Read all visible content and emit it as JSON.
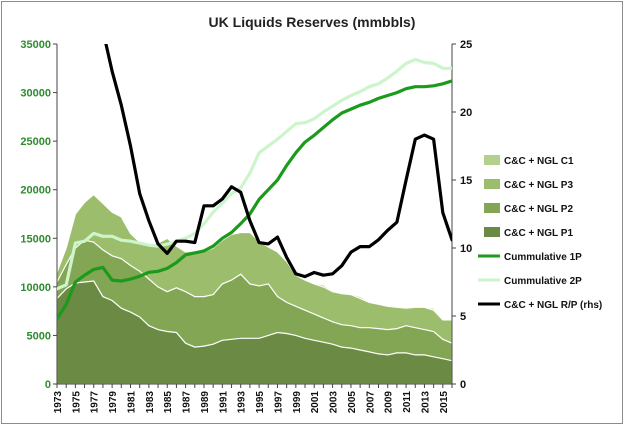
{
  "chart_data": {
    "type": "area",
    "title": "UK Liquids Reserves (mmbbls)",
    "x": [
      1973,
      1974,
      1975,
      1976,
      1977,
      1978,
      1979,
      1980,
      1981,
      1982,
      1983,
      1984,
      1985,
      1986,
      1987,
      1988,
      1989,
      1990,
      1991,
      1992,
      1993,
      1994,
      1995,
      1996,
      1997,
      1998,
      1999,
      2000,
      2001,
      2002,
      2003,
      2004,
      2005,
      2006,
      2007,
      2008,
      2009,
      2010,
      2011,
      2012,
      2013,
      2014,
      2015,
      2016
    ],
    "x_tick_labels": [
      "1973",
      "1975",
      "1977",
      "1979",
      "1981",
      "1983",
      "1985",
      "1987",
      "1989",
      "1991",
      "1993",
      "1995",
      "1997",
      "1999",
      "2001",
      "2003",
      "2005",
      "2007",
      "2009",
      "2011",
      "2013",
      "2015"
    ],
    "y_left": {
      "min": 0,
      "max": 35000,
      "ticks": [
        "0",
        "5000",
        "10000",
        "15000",
        "20000",
        "25000",
        "30000",
        "35000"
      ],
      "color": "#2e8b2e"
    },
    "y_right": {
      "min": 0,
      "max": 25,
      "ticks": [
        "0",
        "5",
        "10",
        "15",
        "20",
        "25"
      ],
      "color": "#111111"
    },
    "grid": false,
    "legend_position": "right",
    "series": [
      {
        "name": "C&C + NGL C1",
        "kind": "area",
        "axis": "left",
        "color": "#b5d08a",
        "values": [
          11500,
          14000,
          17000,
          18500,
          18800,
          18000,
          17000,
          17200,
          15500,
          14600,
          14300,
          14500,
          15000,
          14200,
          13600,
          13700,
          13600,
          14000,
          14800,
          15400,
          15500,
          15600,
          14600,
          14000,
          13500,
          12500,
          11000,
          10600,
          10400,
          10200,
          9600,
          9400,
          9300,
          9000,
          8500,
          8300,
          8100,
          8000,
          7900,
          8000,
          7900,
          7800,
          6600,
          6600
        ]
      },
      {
        "name": "C&C + NGL P3",
        "kind": "area",
        "axis": "left",
        "color": "#9cbe6c",
        "values": [
          11500,
          14000,
          17500,
          18700,
          19500,
          18600,
          17700,
          17200,
          15500,
          14600,
          14300,
          14500,
          15000,
          14200,
          13600,
          13700,
          13600,
          14000,
          14800,
          15400,
          15600,
          15600,
          14700,
          14100,
          13600,
          12600,
          11200,
          10700,
          10300,
          10000,
          9500,
          9300,
          9200,
          8800,
          8400,
          8200,
          8000,
          7900,
          7800,
          7900,
          7900,
          7600,
          6600,
          6600
        ]
      },
      {
        "name": "C&C + NGL P2",
        "kind": "area",
        "axis": "left",
        "color": "#82a653",
        "values": [
          10500,
          12300,
          14000,
          14800,
          14600,
          13800,
          13200,
          12900,
          12200,
          11600,
          10800,
          10000,
          9500,
          9900,
          9500,
          9000,
          9000,
          9200,
          10300,
          10700,
          11300,
          10300,
          10100,
          10300,
          9000,
          8400,
          8000,
          7600,
          7200,
          6800,
          6400,
          6100,
          6000,
          5800,
          5800,
          5700,
          5600,
          5700,
          6000,
          5800,
          5600,
          5400,
          4600,
          4200
        ]
      },
      {
        "name": "C&C + NGL P1",
        "kind": "area",
        "axis": "left",
        "color": "#6b8a44",
        "values": [
          8800,
          9800,
          10400,
          10500,
          10600,
          9000,
          8600,
          7800,
          7400,
          6900,
          6000,
          5600,
          5400,
          5300,
          4200,
          3800,
          3900,
          4100,
          4500,
          4600,
          4700,
          4700,
          4700,
          5000,
          5300,
          5200,
          5000,
          4700,
          4500,
          4300,
          4100,
          3800,
          3700,
          3500,
          3300,
          3100,
          3000,
          3200,
          3200,
          3000,
          3000,
          2800,
          2600,
          2400
        ]
      },
      {
        "name": "Cummulative 1P",
        "kind": "line",
        "axis": "left",
        "color": "#1c9a1c",
        "values": [
          6700,
          8200,
          10500,
          11200,
          11800,
          12000,
          10700,
          10600,
          10800,
          11100,
          11500,
          11600,
          11900,
          12500,
          13300,
          13500,
          13700,
          14200,
          15000,
          15600,
          16500,
          17500,
          19000,
          20000,
          21000,
          22500,
          23800,
          24900,
          25600,
          26400,
          27200,
          27900,
          28300,
          28700,
          29000,
          29400,
          29700,
          30000,
          30400,
          30600,
          30600,
          30700,
          30900,
          31200
        ]
      },
      {
        "name": "Cummulative 2P",
        "kind": "line",
        "axis": "left",
        "color": "#ccf5cc",
        "values": [
          9800,
          10200,
          14500,
          14700,
          15500,
          15200,
          15200,
          14800,
          14700,
          14500,
          14300,
          14200,
          14400,
          14700,
          15000,
          15500,
          16500,
          17700,
          18600,
          19600,
          20200,
          21700,
          23800,
          24500,
          25200,
          26000,
          26800,
          26900,
          27300,
          28000,
          28600,
          29200,
          29700,
          30100,
          30600,
          30900,
          31500,
          32200,
          33000,
          33400,
          33100,
          33000,
          32500,
          32500
        ]
      },
      {
        "name": "C&C + NGL R/P (rhs)",
        "kind": "line",
        "axis": "right",
        "color": "#000000",
        "values": [
          null,
          null,
          null,
          null,
          null,
          26.0,
          23.0,
          20.5,
          17.5,
          14.0,
          12.0,
          10.3,
          9.6,
          10.5,
          10.5,
          10.4,
          13.1,
          13.1,
          13.6,
          14.5,
          14.1,
          12.0,
          10.4,
          10.3,
          10.8,
          9.3,
          8.1,
          7.9,
          8.2,
          8.0,
          8.1,
          8.7,
          9.7,
          10.1,
          10.1,
          10.6,
          11.3,
          11.9,
          15.0,
          18.0,
          18.3,
          18.0,
          12.6,
          10.6
        ]
      }
    ]
  }
}
